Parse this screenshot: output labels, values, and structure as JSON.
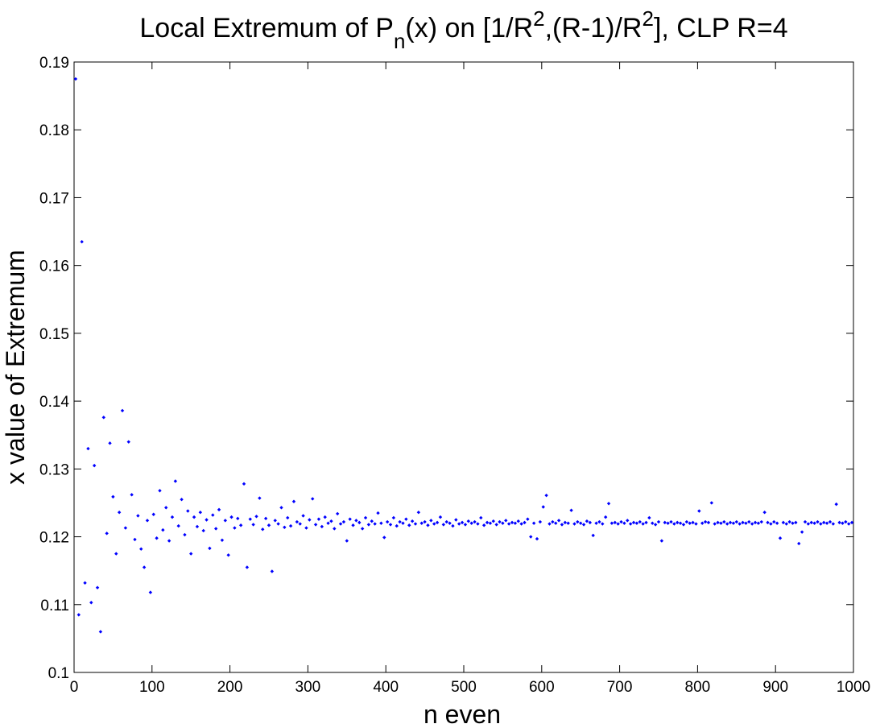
{
  "chart_data": {
    "type": "scatter",
    "title": [
      "Local Extremum of P",
      "n",
      "(x) on [1/R",
      "2",
      ",(R-1)/R",
      "2",
      "], CLP R=4"
    ],
    "xlabel": "n even",
    "ylabel": "x value of Extremum",
    "xlim": [
      0,
      1000
    ],
    "ylim": [
      0.1,
      0.19
    ],
    "xticks": [
      0,
      100,
      200,
      300,
      400,
      500,
      600,
      700,
      800,
      900,
      1000
    ],
    "yticks": [
      0.1,
      0.11,
      0.12,
      0.13,
      0.14,
      0.15,
      0.16,
      0.17,
      0.18,
      0.19
    ],
    "grid": false,
    "series": [
      {
        "color": "#0000ff",
        "x": [
          2,
          6,
          10,
          14,
          18,
          22,
          26,
          30,
          34,
          38,
          42,
          46,
          50,
          54,
          58,
          62,
          66,
          70,
          74,
          78,
          82,
          86,
          90,
          94,
          98,
          102,
          106,
          110,
          114,
          118,
          122,
          126,
          130,
          134,
          138,
          142,
          146,
          150,
          154,
          158,
          162,
          166,
          170,
          174,
          178,
          182,
          186,
          190,
          194,
          198,
          202,
          206,
          210,
          214,
          218,
          222,
          226,
          230,
          234,
          238,
          242,
          246,
          250,
          254,
          258,
          262,
          266,
          270,
          274,
          278,
          282,
          286,
          290,
          294,
          298,
          302,
          306,
          310,
          314,
          318,
          322,
          326,
          330,
          334,
          338,
          342,
          346,
          350,
          354,
          358,
          362,
          366,
          370,
          374,
          378,
          382,
          386,
          390,
          394,
          398,
          402,
          406,
          410,
          414,
          418,
          422,
          426,
          430,
          434,
          438,
          442,
          446,
          450,
          454,
          458,
          462,
          466,
          470,
          474,
          478,
          482,
          486,
          490,
          494,
          498,
          502,
          506,
          510,
          514,
          518,
          522,
          526,
          530,
          534,
          538,
          542,
          546,
          550,
          554,
          558,
          562,
          566,
          570,
          574,
          578,
          582,
          586,
          590,
          594,
          598,
          602,
          606,
          610,
          614,
          618,
          622,
          626,
          630,
          634,
          638,
          642,
          646,
          650,
          654,
          658,
          662,
          666,
          670,
          674,
          678,
          682,
          686,
          690,
          694,
          698,
          702,
          706,
          710,
          714,
          718,
          722,
          726,
          730,
          734,
          738,
          742,
          746,
          750,
          754,
          758,
          762,
          766,
          770,
          774,
          778,
          782,
          786,
          790,
          794,
          798,
          802,
          806,
          810,
          814,
          818,
          822,
          826,
          830,
          834,
          838,
          842,
          846,
          850,
          854,
          858,
          862,
          866,
          870,
          874,
          878,
          882,
          886,
          890,
          894,
          898,
          902,
          906,
          910,
          914,
          918,
          922,
          926,
          930,
          934,
          938,
          942,
          946,
          950,
          954,
          958,
          962,
          966,
          970,
          974,
          978,
          982,
          986,
          990,
          994,
          998
        ],
        "values": [
          0.1875,
          0.1085,
          0.1635,
          0.1132,
          0.133,
          0.1103,
          0.1305,
          0.1125,
          0.106,
          0.1376,
          0.1205,
          0.1338,
          0.1259,
          0.1175,
          0.1236,
          0.1386,
          0.1213,
          0.134,
          0.1262,
          0.1196,
          0.1231,
          0.1182,
          0.1155,
          0.1224,
          0.1118,
          0.1233,
          0.1198,
          0.1268,
          0.121,
          0.1243,
          0.1194,
          0.1229,
          0.1282,
          0.1216,
          0.1255,
          0.1203,
          0.1238,
          0.1175,
          0.1229,
          0.1215,
          0.1236,
          0.1209,
          0.1225,
          0.1183,
          0.1232,
          0.1212,
          0.124,
          0.1195,
          0.1224,
          0.1173,
          0.1229,
          0.1213,
          0.1227,
          0.1217,
          0.1278,
          0.1155,
          0.1226,
          0.1218,
          0.123,
          0.1257,
          0.1211,
          0.1227,
          0.1217,
          0.1149,
          0.1224,
          0.1219,
          0.1243,
          0.1214,
          0.1228,
          0.1216,
          0.1252,
          0.1222,
          0.1219,
          0.1231,
          0.1213,
          0.1225,
          0.1256,
          0.1218,
          0.1226,
          0.1215,
          0.1229,
          0.122,
          0.1223,
          0.1212,
          0.1234,
          0.1219,
          0.1222,
          0.1194,
          0.1226,
          0.1217,
          0.1224,
          0.1221,
          0.1212,
          0.1228,
          0.1218,
          0.1223,
          0.1219,
          0.1235,
          0.122,
          0.1199,
          0.1222,
          0.1218,
          0.1228,
          0.1216,
          0.1222,
          0.122,
          0.1226,
          0.1217,
          0.1223,
          0.1219,
          0.1236,
          0.122,
          0.1222,
          0.1217,
          0.1224,
          0.1219,
          0.1221,
          0.1229,
          0.1218,
          0.1222,
          0.122,
          0.1216,
          0.1225,
          0.1219,
          0.1221,
          0.1218,
          0.1223,
          0.122,
          0.1222,
          0.1219,
          0.1228,
          0.1217,
          0.1221,
          0.122,
          0.1223,
          0.1218,
          0.1222,
          0.122,
          0.1224,
          0.1219,
          0.1221,
          0.122,
          0.1223,
          0.1219,
          0.1221,
          0.1226,
          0.12,
          0.122,
          0.1197,
          0.1222,
          0.1244,
          0.1261,
          0.1219,
          0.1222,
          0.122,
          0.1224,
          0.1218,
          0.1221,
          0.122,
          0.1239,
          0.1219,
          0.1222,
          0.122,
          0.1218,
          0.1223,
          0.1221,
          0.1202,
          0.122,
          0.1222,
          0.1219,
          0.1229,
          0.1249,
          0.122,
          0.1221,
          0.1219,
          0.1222,
          0.122,
          0.1224,
          0.1219,
          0.1221,
          0.122,
          0.1222,
          0.1219,
          0.1221,
          0.1228,
          0.122,
          0.1218,
          0.1222,
          0.1194,
          0.1221,
          0.122,
          0.1222,
          0.1219,
          0.1221,
          0.122,
          0.1218,
          0.1222,
          0.122,
          0.1221,
          0.1219,
          0.1238,
          0.122,
          0.1222,
          0.1221,
          0.125,
          0.1219,
          0.1221,
          0.122,
          0.1222,
          0.1219,
          0.1221,
          0.122,
          0.1222,
          0.1219,
          0.1221,
          0.122,
          0.1222,
          0.1219,
          0.1221,
          0.122,
          0.1222,
          0.1236,
          0.1221,
          0.1219,
          0.1222,
          0.122,
          0.1198,
          0.1221,
          0.1219,
          0.1222,
          0.122,
          0.1221,
          0.119,
          0.1207,
          0.1222,
          0.1219,
          0.1221,
          0.122,
          0.1222,
          0.1219,
          0.1221,
          0.122,
          0.1222,
          0.1219,
          0.1248,
          0.1221,
          0.122,
          0.1222,
          0.1219,
          0.1221
        ]
      }
    ]
  }
}
